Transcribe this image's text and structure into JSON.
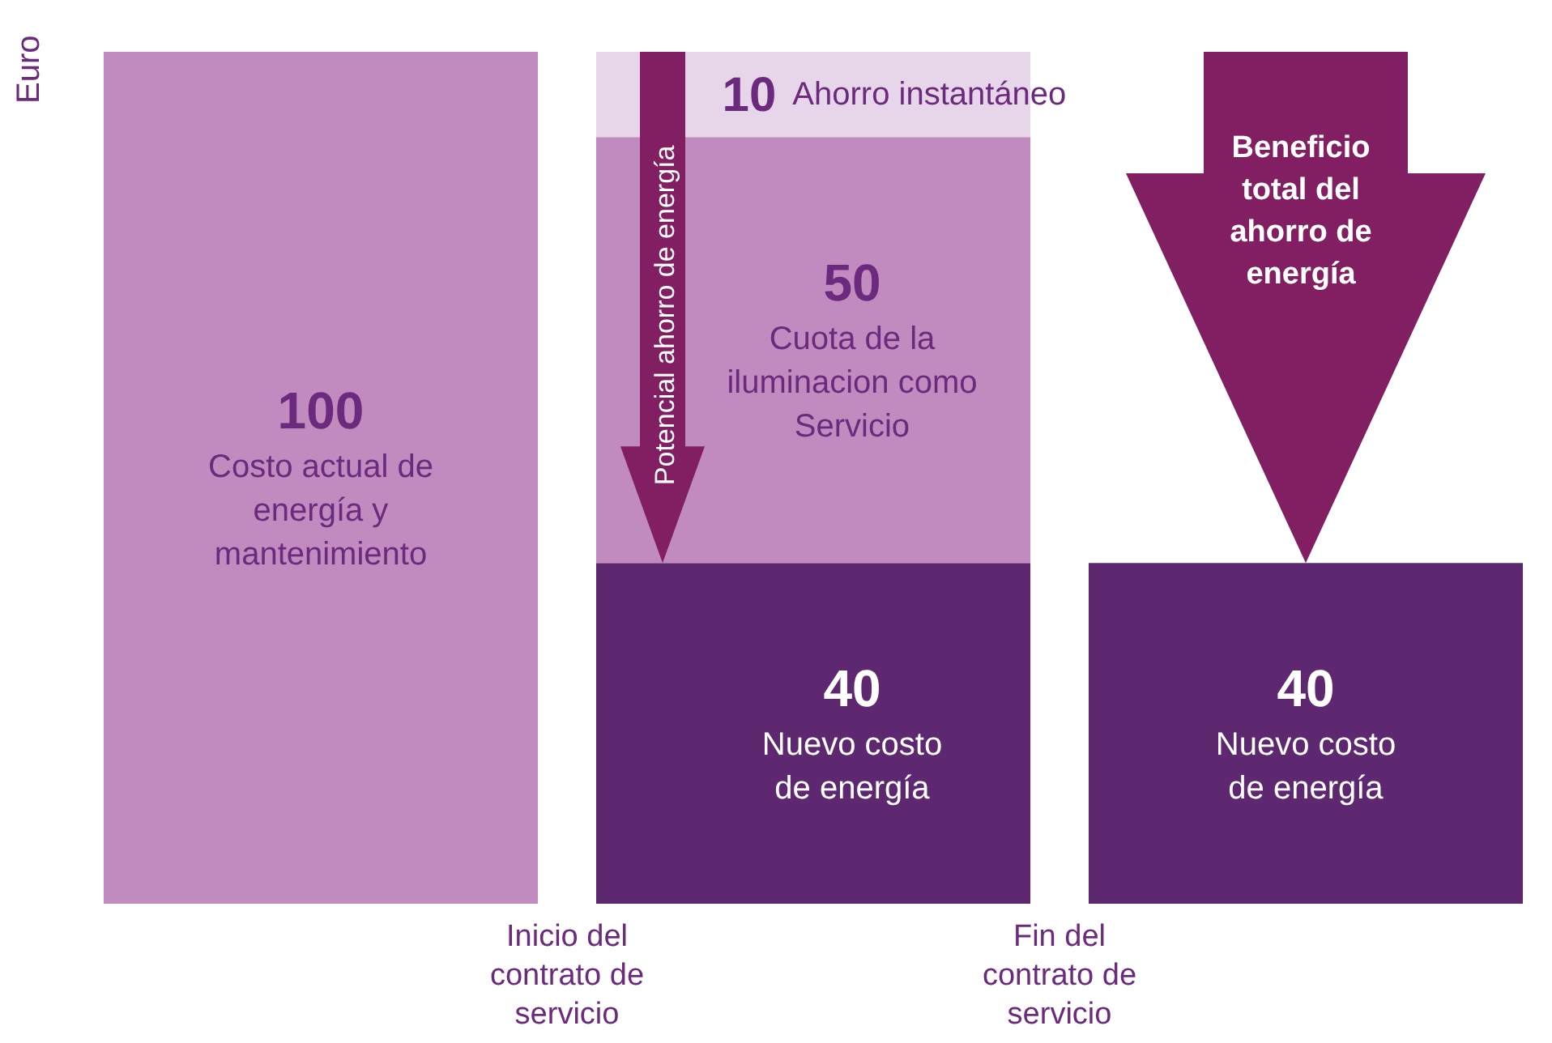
{
  "chart_data": {
    "type": "bar",
    "stacked": true,
    "ylabel": "Euro",
    "categories": [
      null,
      null,
      null
    ],
    "series": [
      {
        "name": "Costo actual de energía y mantenimiento",
        "color": "#c18bbf",
        "values": [
          100,
          null,
          null
        ]
      },
      {
        "name": "Nuevo costo de energía",
        "color": "#5e2870",
        "values": [
          null,
          40,
          40
        ]
      },
      {
        "name": "Cuota de la iluminacion como Servicio",
        "color": "#c18bbf",
        "values": [
          null,
          50,
          null
        ]
      },
      {
        "name": "Ahorro instantáneo",
        "color": "#e7d6ea",
        "values": [
          null,
          10,
          null
        ]
      }
    ],
    "data_labels": true,
    "legend": false,
    "grid": false,
    "annotations": [
      "Inicio del contrato de servicio",
      "Fin del contrato de servicio",
      "Potencial ahorro de energía",
      "Beneficio total del ahorro de energía"
    ]
  }
}
